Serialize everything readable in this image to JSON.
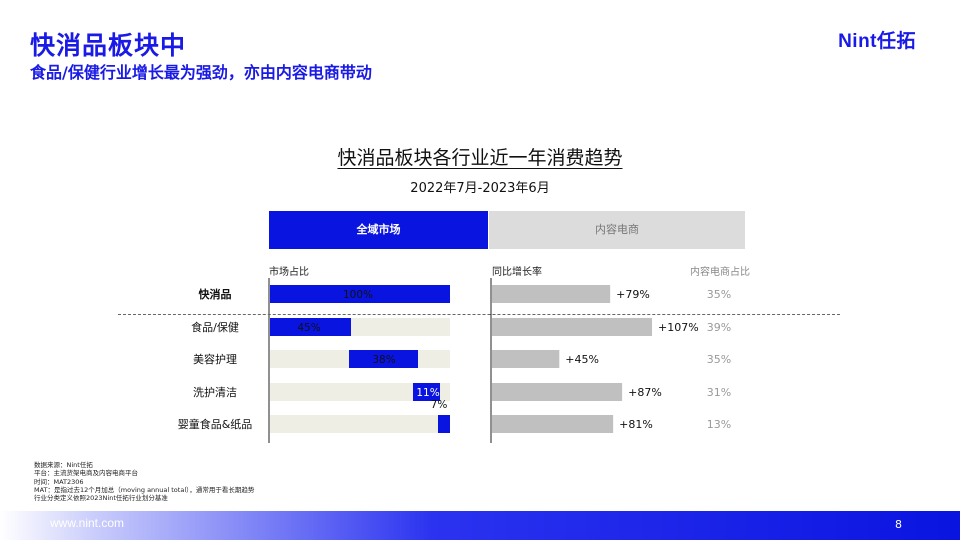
{
  "header": {
    "title": "快消品板块中",
    "subtitle": "食品/保健行业增长最为强劲，亦由内容电商带动",
    "logo": "Nint任拓"
  },
  "chart_data": {
    "type": "bar",
    "title": "快消品板块各行业近一年消费趋势",
    "period": "2022年7月-2023年6月",
    "tabs": [
      "全域市场",
      "内容电商"
    ],
    "column_headers": {
      "share": "市场占比",
      "growth": "同比增长率",
      "content_share": "内容电商占比"
    },
    "categories": [
      "快消品",
      "食品/保健",
      "美容护理",
      "洗护清洁",
      "婴童食品&纸品"
    ],
    "market_share": {
      "values": [
        100,
        45,
        38,
        11,
        7
      ],
      "labels": [
        "100%",
        "45%",
        "38%",
        "11%",
        "7%"
      ]
    },
    "yoy_growth": {
      "values": [
        79,
        107,
        45,
        87,
        81
      ],
      "labels": [
        "+79%",
        "+107%",
        "+45%",
        "+87%",
        "+81%"
      ]
    },
    "content_ecommerce_share": {
      "values": [
        35,
        39,
        35,
        31,
        13
      ],
      "labels": [
        "35%",
        "39%",
        "35%",
        "31%",
        "13%"
      ]
    },
    "colors": {
      "accent": "#0a14e0",
      "track": "#efeee4",
      "growth_bar": "#c0c0c0",
      "muted_text": "#999999"
    }
  },
  "notes": [
    "数据来源：Nint任拓",
    "平台：主流货架电商及内容电商平台",
    "时间：MAT2306",
    "MAT：是指过去12个月加总（moving annual total），通常用于看长期趋势",
    "行业分类定义依照2023Nint任拓行业划分基准"
  ],
  "footer": {
    "url": "www.nint.com",
    "page": "8"
  }
}
